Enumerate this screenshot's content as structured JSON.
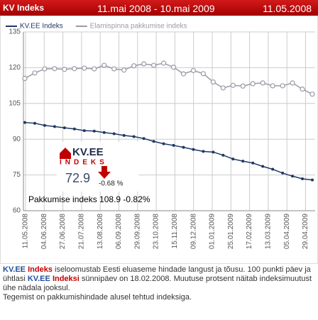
{
  "header": {
    "title": "KV Indeks",
    "date_range": "11.mai 2008 - 10.mai 2009",
    "date": "11.05.2008"
  },
  "chart_data": {
    "type": "line",
    "series": [
      {
        "name": "KV.EE Indeks",
        "color": "#1f3864",
        "values": [
          97,
          96.7,
          95.8,
          95.3,
          94.8,
          94.3,
          93.6,
          93.4,
          92.8,
          92.3,
          91.6,
          91.1,
          90.3,
          89.1,
          88.1,
          87.4,
          86.6,
          85.7,
          84.9,
          84.6,
          83.3,
          81.7,
          80.8,
          80.0,
          78.6,
          77.4,
          75.8,
          74.5,
          73.4,
          72.9
        ]
      },
      {
        "name": "Elamispinna pakkumise indeks",
        "color": "#9a9aa6",
        "values": [
          115.5,
          117.8,
          119.5,
          119.6,
          119.3,
          119.6,
          119.8,
          119.5,
          121.0,
          119.5,
          119.0,
          120.8,
          121.6,
          121.0,
          121.9,
          120.2,
          117.4,
          118.8,
          117.5,
          114.0,
          111.5,
          112.6,
          112.3,
          113.3,
          113.6,
          112.4,
          112.4,
          113.6,
          111.0,
          108.9
        ]
      }
    ],
    "xticks": [
      "11.05.2008",
      "04.06.2008",
      "27.06.2008",
      "21.07.2008",
      "13.08.2008",
      "06.09.2008",
      "29.09.2008",
      "23.10.2008",
      "15.11.2008",
      "09.12.2008",
      "01.01.2009",
      "25.01.2009",
      "17.02.2009",
      "13.03.2009",
      "05.04.2009",
      "29.04.2009"
    ],
    "ylim": [
      60,
      135
    ],
    "yticks": [
      60,
      75,
      90,
      105,
      120,
      135
    ],
    "grid": true
  },
  "overlay": {
    "logo_top": "KV.EE",
    "logo_bottom": "INDEKS",
    "value": "72.9",
    "change": "-0.68 %",
    "caption": "Pakkumise indeks 108.9  -0.82%"
  },
  "footer": {
    "brand": "KV.EE",
    "word1": "Indeks",
    "text1": "iseloomustab Eesti eluaseme hindade langust ja tõusu. 100 punkti päev ja ühtlasi",
    "brand2": "KV.EE",
    "word2": "Indeksi",
    "text2": "sünnipäev on 18.02.2008. Muutuse protsent näitab indeksimuutust ühe nädala jooksul.",
    "text3": "Tegemist on pakkumishindade alusel tehtud indeksiga."
  }
}
